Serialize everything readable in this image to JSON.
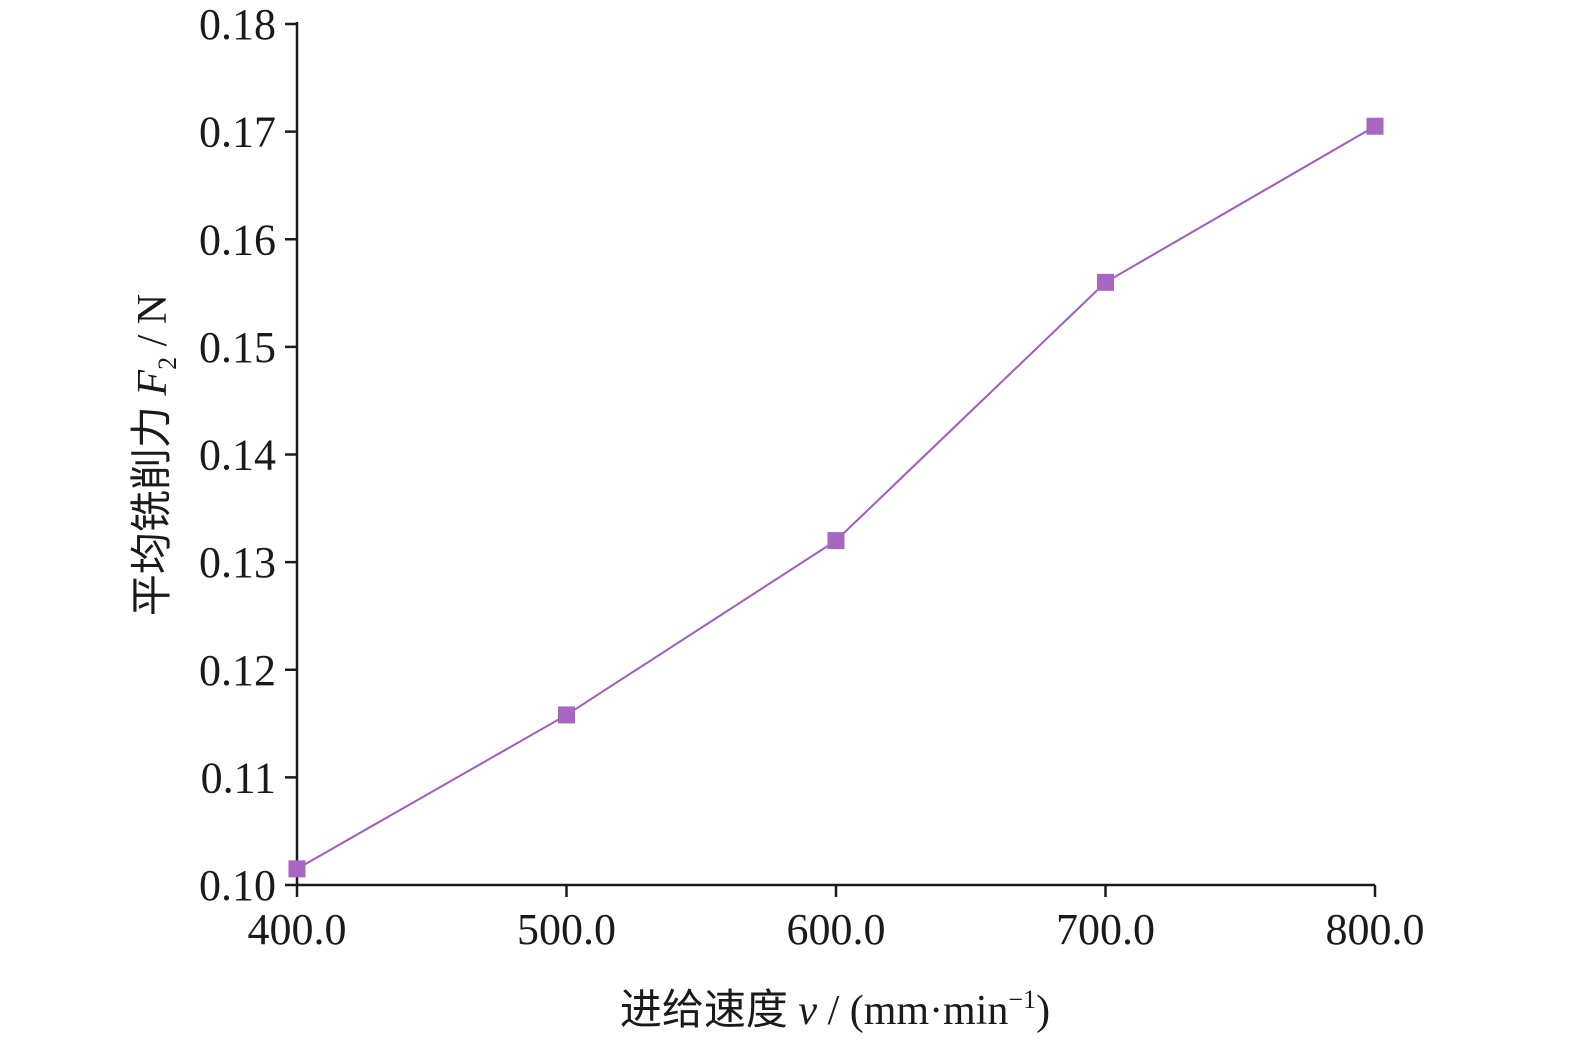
{
  "chart_data": {
    "type": "line",
    "x": [
      400.0,
      500.0,
      600.0,
      700.0,
      800.0
    ],
    "series": [
      {
        "values": [
          0.1015,
          0.1158,
          0.132,
          0.156,
          0.1705
        ]
      }
    ],
    "x_ticks": [
      "400.0",
      "500.0",
      "600.0",
      "700.0",
      "800.0"
    ],
    "y_ticks": [
      "0.10",
      "0.11",
      "0.12",
      "0.13",
      "0.14",
      "0.15",
      "0.16",
      "0.17",
      "0.18"
    ],
    "xlim": [
      400,
      800
    ],
    "ylim": [
      0.1,
      0.18
    ],
    "grid": false,
    "xlabel": {
      "prefix": "进给速度 ",
      "var": "v",
      "mid": " / (mm·min",
      "sup": "−1",
      "suffix": ")"
    },
    "ylabel": {
      "prefix": "平均铣削力 ",
      "var": "F",
      "sub": "2",
      "suffix": " / N"
    },
    "colors": {
      "series": "#a05cbc",
      "marker": "#a766c2",
      "axis": "#1a1a1a"
    }
  }
}
